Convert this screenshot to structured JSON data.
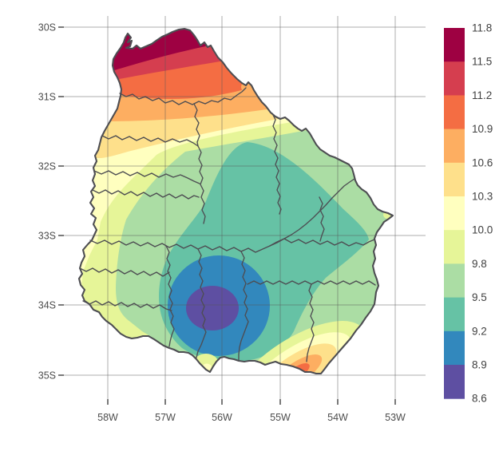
{
  "figure": {
    "background": "#FFFFFF",
    "description": "Filled contour map of Uruguay with department boundaries and a vertical colorbar"
  },
  "axes": {
    "x": {
      "tick_labels": [
        "58W",
        "57W",
        "56W",
        "55W",
        "54W",
        "53W"
      ]
    },
    "y": {
      "tick_labels": [
        "30S",
        "31S",
        "32S",
        "33S",
        "34S",
        "35S"
      ]
    }
  },
  "legend": {
    "tick_labels": [
      "11.8",
      "11.5",
      "11.2",
      "10.9",
      "10.6",
      "10.3",
      "10.0",
      "9.8",
      "9.5",
      "9.2",
      "8.9",
      "8.6"
    ],
    "colors": [
      "#9E0142",
      "#D53E4F",
      "#F46D43",
      "#FDAE61",
      "#FEE08B",
      "#FFFFBF",
      "#E6F598",
      "#ABDDA4",
      "#66C2A5",
      "#3288BD",
      "#5E4FA2"
    ]
  },
  "style": {
    "grid_color": "#AAAAAA",
    "axis_text_color": "#4D4D4D",
    "legend_text_color": "#404040",
    "tick_color": "#333333",
    "boundary_color": "#4D4D52",
    "background": "#FFFFFF"
  },
  "chart_data": {
    "type": "heatmap",
    "subtype": "filled-contour choropleth map",
    "region": "Uruguay with internal department boundaries",
    "x_axis": {
      "tick_labels": [
        "58W",
        "57W",
        "56W",
        "55W",
        "54W",
        "53W"
      ],
      "range": [
        "58W",
        "53W"
      ]
    },
    "y_axis": {
      "tick_labels": [
        "30S",
        "31S",
        "32S",
        "33S",
        "34S",
        "35S"
      ],
      "range": [
        "30S",
        "35S"
      ]
    },
    "grid": true,
    "legend_position": "right",
    "colorbar": {
      "breaks": [
        8.6,
        8.9,
        9.2,
        9.5,
        9.8,
        10.0,
        10.3,
        10.6,
        10.9,
        11.2,
        11.5,
        11.8
      ],
      "n_classes": 11,
      "palette": "Spectral (high=dark red, low=purple)",
      "colors_top_to_bottom": [
        "#9E0142",
        "#D53E4F",
        "#F46D43",
        "#FDAE61",
        "#FEE08B",
        "#FFFFBF",
        "#E6F598",
        "#ABDDA4",
        "#66C2A5",
        "#3288BD",
        "#5E4FA2"
      ]
    },
    "pattern": {
      "maximum": {
        "band": "11.5-11.8",
        "location": "far north / northwest corner (around 57W, 30.2S)"
      },
      "north_gradient": "bands 11.2 down to 10.0 run west-east across the north, values decreasing southward",
      "minimum": {
        "band": "8.6-8.9",
        "location": "south-central interior around 56.2W, 34S (purple core inside blue ring)"
      },
      "center": "broad 9.2-9.5 teal region across the center and east",
      "secondary_high": {
        "band": "10.6-10.9",
        "location": "small warm spot on the southeast coast near 55.3W, 34.9S"
      },
      "minor_spots": [
        "small 9.8-10.0 patch on south-coast peninsula near 56.2W, 34.9S",
        "small 9.8-10.0 patch at eastern tip near 53.2W, 32.7S"
      ]
    }
  }
}
